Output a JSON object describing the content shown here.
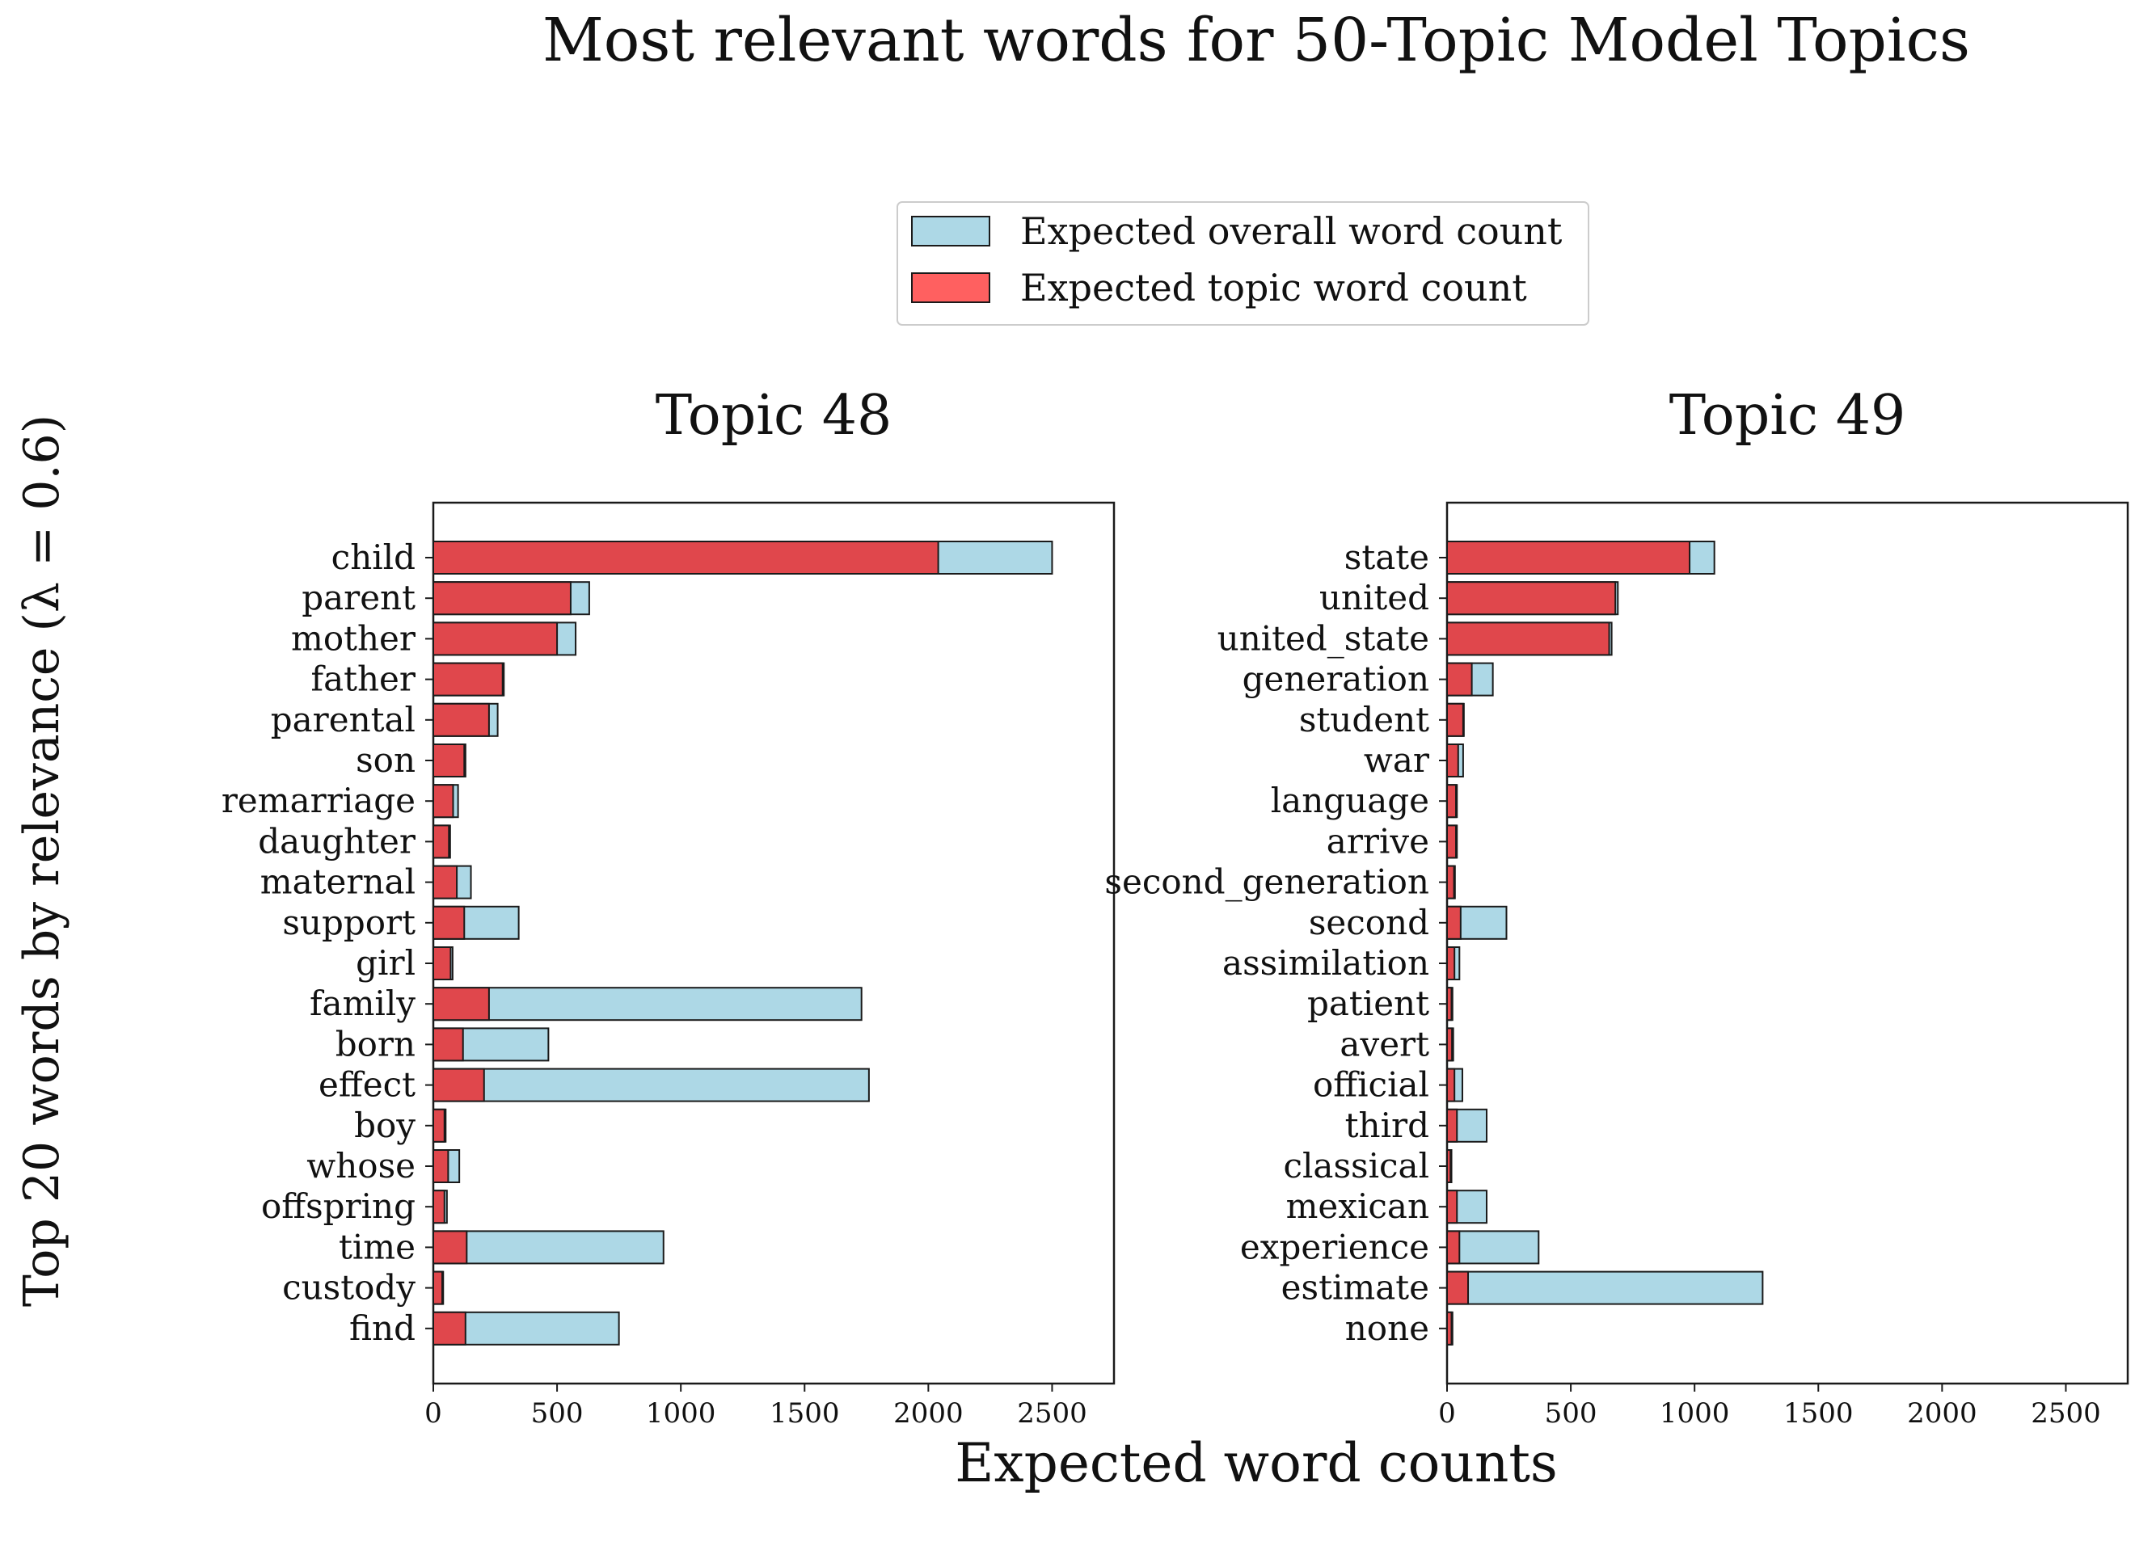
{
  "chart_data": {
    "title": "Most relevant words for 50-Topic Model Topics",
    "xlabel": "Expected word counts",
    "ylabel": "Top 20 words by relevance (λ = 0.6)",
    "legend": {
      "placement": "top-center",
      "entries": [
        {
          "label": "Expected overall word count",
          "color": "#add8e6"
        },
        {
          "label": "Expected topic word count",
          "color": "#ff4c4c"
        }
      ]
    },
    "colors": {
      "overall": "#add8e6",
      "topic": "#e0474c",
      "edge": "#1a1a1a"
    },
    "xlim": [
      0,
      2750
    ],
    "xticks": [
      0,
      500,
      1000,
      1500,
      2000,
      2500
    ],
    "panels": [
      {
        "type": "bar",
        "orientation": "horizontal",
        "title": "Topic 48",
        "categories": [
          "child",
          "parent",
          "mother",
          "father",
          "parental",
          "son",
          "remarriage",
          "daughter",
          "maternal",
          "support",
          "girl",
          "family",
          "born",
          "effect",
          "boy",
          "whose",
          "offspring",
          "time",
          "custody",
          "find"
        ],
        "series": [
          {
            "name": "Expected overall word count",
            "values": [
              2500,
              630,
              575,
              285,
              260,
              130,
              100,
              68,
              152,
              345,
              78,
              1730,
              465,
              1760,
              50,
              105,
              55,
              930,
              40,
              750
            ]
          },
          {
            "name": "Expected topic word count",
            "values": [
              2040,
              555,
              500,
              280,
              225,
              125,
              80,
              63,
              95,
              125,
              70,
              225,
              120,
              205,
              45,
              60,
              45,
              135,
              36,
              130
            ]
          }
        ]
      },
      {
        "type": "bar",
        "orientation": "horizontal",
        "title": "Topic 49",
        "categories": [
          "state",
          "united",
          "united_state",
          "generation",
          "student",
          "war",
          "language",
          "arrive",
          "second_generation",
          "second",
          "assimilation",
          "patient",
          "avert",
          "official",
          "third",
          "classical",
          "mexican",
          "experience",
          "estimate",
          "none"
        ],
        "series": [
          {
            "name": "Expected overall word count",
            "values": [
              1080,
              690,
              665,
              185,
              68,
              65,
              40,
              40,
              32,
              240,
              50,
              22,
              25,
              62,
              160,
              18,
              160,
              370,
              1275,
              22
            ]
          },
          {
            "name": "Expected topic word count",
            "values": [
              980,
              680,
              655,
              100,
              65,
              45,
              36,
              36,
              28,
              55,
              30,
              18,
              20,
              30,
              40,
              14,
              40,
              50,
              85,
              18
            ]
          }
        ]
      }
    ]
  }
}
